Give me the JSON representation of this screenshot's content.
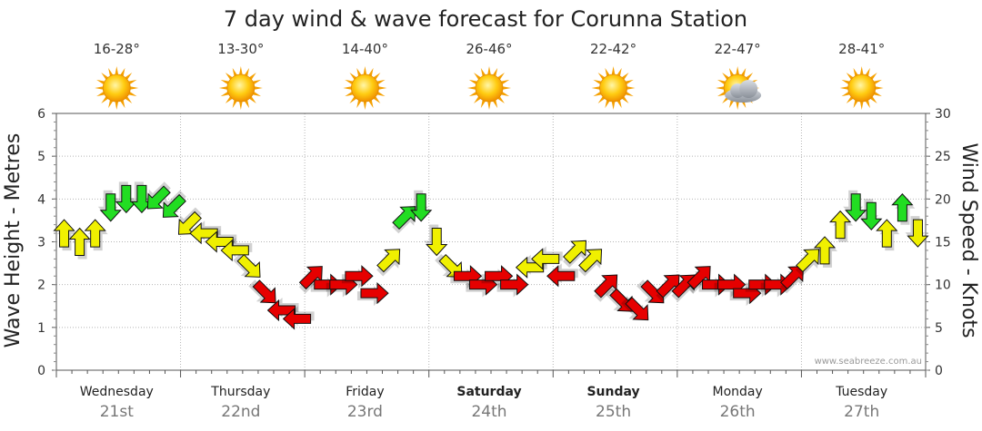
{
  "chart_data": {
    "type": "line",
    "title": "7 day wind & wave forecast for Corunna Station",
    "ylabel_left": "Wave Height - Metres",
    "ylabel_right": "Wind Speed - Knots",
    "ylim_left": [
      0,
      6
    ],
    "ylim_right": [
      0,
      30
    ],
    "yticks_left": [
      "0",
      "1",
      "2",
      "3",
      "4",
      "5",
      "6"
    ],
    "yticks_right": [
      "0",
      "5",
      "10",
      "15",
      "20",
      "25",
      "30"
    ],
    "grid": true,
    "watermark": "www.seabreeze.com.au",
    "speed_colors": {
      "light": "#e60000",
      "moderate": "#f0f000",
      "strong": "#22dd22"
    },
    "days": [
      {
        "name": "Wednesday",
        "date": "21st",
        "temp": "16-28°",
        "icon": "sun-icon",
        "bold": false
      },
      {
        "name": "Thursday",
        "date": "22nd",
        "temp": "13-30°",
        "icon": "sun-icon",
        "bold": false
      },
      {
        "name": "Friday",
        "date": "23rd",
        "temp": "14-40°",
        "icon": "sun-icon",
        "bold": false
      },
      {
        "name": "Saturday",
        "date": "24th",
        "temp": "26-46°",
        "icon": "sun-icon",
        "bold": true
      },
      {
        "name": "Sunday",
        "date": "25th",
        "temp": "22-42°",
        "icon": "sun-icon",
        "bold": true
      },
      {
        "name": "Monday",
        "date": "26th",
        "temp": "22-47°",
        "icon": "sun-cloud-icon",
        "bold": false
      },
      {
        "name": "Tuesday",
        "date": "27th",
        "temp": "28-41°",
        "icon": "sun-icon",
        "bold": false
      }
    ],
    "series": [
      {
        "name": "Wind Speed - Knots",
        "x_hours": [
          0,
          3,
          6,
          9,
          12,
          15,
          18,
          21,
          24,
          27,
          30,
          33,
          36,
          39,
          42,
          45,
          48,
          51,
          54,
          57,
          60,
          63,
          66,
          69,
          72,
          75,
          78,
          81,
          84,
          87,
          90,
          93,
          96,
          99,
          102,
          105,
          108,
          111,
          114,
          117,
          120,
          123,
          126,
          129,
          132,
          135,
          138,
          141,
          144,
          147,
          150,
          153,
          156,
          159,
          162,
          165
        ],
        "wind_knots": [
          16,
          15,
          16,
          19,
          20,
          20,
          20,
          19,
          17,
          16,
          15,
          14,
          12,
          9,
          7,
          6,
          11,
          10,
          10,
          11,
          9,
          13,
          18,
          19,
          15,
          12,
          11,
          10,
          11,
          10,
          12,
          13,
          11,
          14,
          13,
          10,
          8,
          7,
          9,
          10,
          10,
          11,
          10,
          10,
          9,
          10,
          10,
          11,
          13,
          14,
          17,
          19,
          18,
          16,
          19,
          16
        ],
        "wind_dir": [
          "N",
          "N",
          "N",
          "S",
          "S",
          "S",
          "SW",
          "SW",
          "SW",
          "W",
          "W",
          "W",
          "SE",
          "SE",
          "W",
          "W",
          "NE",
          "E",
          "E",
          "E",
          "E",
          "NE",
          "NE",
          "S",
          "S",
          "SE",
          "E",
          "E",
          "E",
          "E",
          "W",
          "W",
          "W",
          "NE",
          "NE",
          "NE",
          "SE",
          "SE",
          "SE",
          "NE",
          "NE",
          "NE",
          "E",
          "E",
          "E",
          "E",
          "E",
          "NE",
          "NE",
          "N",
          "N",
          "S",
          "S",
          "N",
          "N",
          "S"
        ]
      }
    ]
  }
}
